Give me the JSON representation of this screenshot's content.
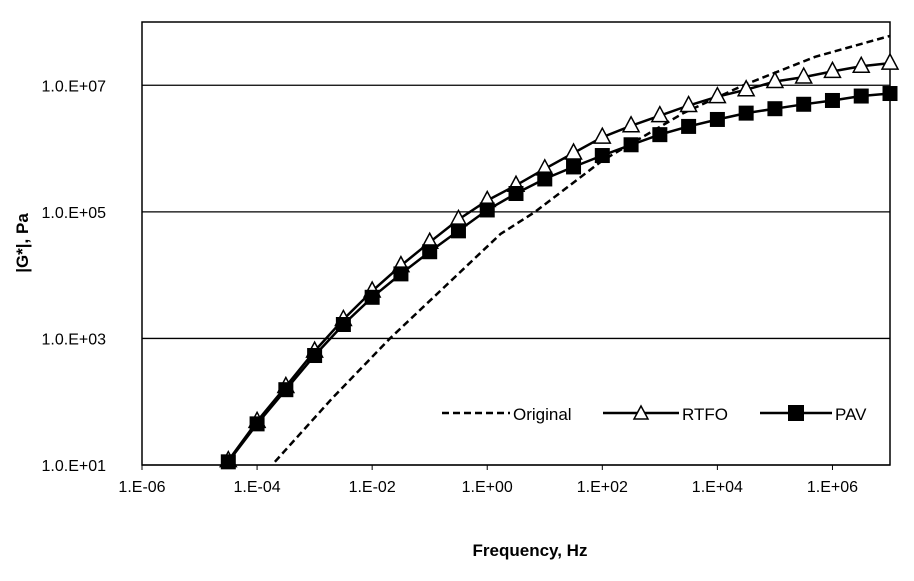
{
  "chart_data": {
    "type": "line",
    "title": "",
    "xlabel": "Frequency, Hz",
    "ylabel": "|G*|, Pa",
    "xscale": "log",
    "yscale": "log",
    "xlim_log10": [
      -6,
      7
    ],
    "ylim_log10": [
      1,
      8
    ],
    "xticks_log10": [
      -6,
      -4,
      -2,
      0,
      2,
      4,
      6
    ],
    "xtick_labels": [
      "1.E-06",
      "1.E-04",
      "1.E-02",
      "1.E+00",
      "1.E+02",
      "1.E+04",
      "1.E+06"
    ],
    "yticks_log10": [
      1,
      3,
      5,
      7
    ],
    "ytick_labels": [
      "1.0.E+01",
      "1.0.E+03",
      "1.0.E+05",
      "1.0.E+07"
    ],
    "grid": "horizontal",
    "legend_position": "bottom-right-inside",
    "series": [
      {
        "name": "Original",
        "style": "dashed",
        "marker": "none",
        "x_log10": [
          -3.69,
          -2.7,
          -1.69,
          0.23,
          0.83,
          2.0,
          3.41,
          4.45,
          5.7,
          7.0
        ],
        "y_log10": [
          1.05,
          2.05,
          3.0,
          4.65,
          5.0,
          5.81,
          6.56,
          7.0,
          7.45,
          7.78
        ]
      },
      {
        "name": "RTFO",
        "style": "solid",
        "marker": "triangle-open",
        "x_log10": [
          -4.5,
          -4,
          -3.5,
          -3,
          -2.5,
          -2,
          -1.5,
          -1,
          -0.5,
          0,
          0.5,
          1,
          1.5,
          2,
          2.5,
          3,
          3.5,
          4,
          4.5,
          5,
          5.5,
          6,
          6.5,
          7
        ],
        "y_log10": [
          1.07,
          1.69,
          2.24,
          2.8,
          3.3,
          3.75,
          4.15,
          4.52,
          4.88,
          5.18,
          5.42,
          5.68,
          5.93,
          6.18,
          6.36,
          6.52,
          6.68,
          6.82,
          6.93,
          7.06,
          7.13,
          7.22,
          7.3,
          7.35
        ]
      },
      {
        "name": "PAV",
        "style": "solid",
        "marker": "square-filled",
        "x_log10": [
          -4.5,
          -4,
          -3.5,
          -3,
          -2.5,
          -2,
          -1.5,
          -1,
          -0.5,
          0,
          0.5,
          1,
          1.5,
          2,
          2.5,
          3,
          3.5,
          4,
          4.5,
          5,
          5.5,
          6,
          6.5,
          7
        ],
        "y_log10": [
          1.05,
          1.65,
          2.19,
          2.73,
          3.22,
          3.65,
          4.02,
          4.37,
          4.7,
          5.03,
          5.29,
          5.52,
          5.71,
          5.89,
          6.06,
          6.22,
          6.35,
          6.46,
          6.56,
          6.63,
          6.7,
          6.76,
          6.83,
          6.87
        ]
      }
    ]
  }
}
